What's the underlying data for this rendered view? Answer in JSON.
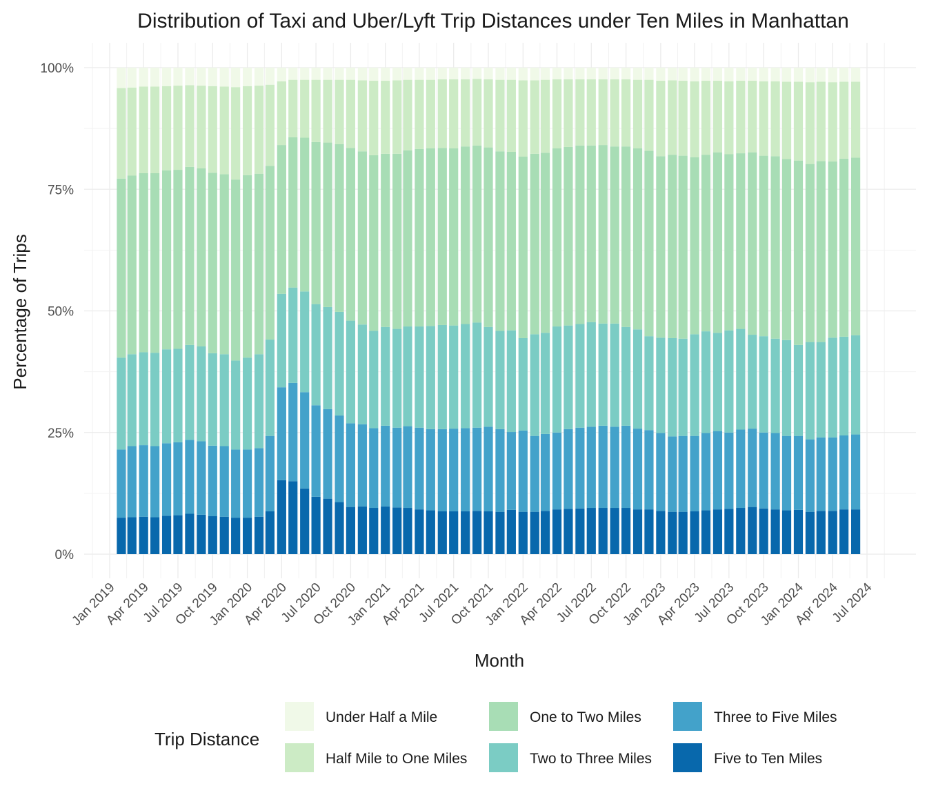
{
  "chart_data": {
    "type": "bar",
    "stacked": true,
    "title": "Distribution of Taxi and Uber/Lyft Trip Distances under Ten Miles in Manhattan",
    "xlabel": "Month",
    "ylabel": "Percentage of Trips",
    "ylim": [
      0,
      1
    ],
    "y_ticks": [
      0,
      0.25,
      0.5,
      0.75,
      1.0
    ],
    "y_tick_labels": [
      "0%",
      "25%",
      "50%",
      "75%",
      "100%"
    ],
    "x_tick_labels": [
      "Jan 2019",
      "Apr 2019",
      "Jul 2019",
      "Oct 2019",
      "Jan 2020",
      "Apr 2020",
      "Jul 2020",
      "Oct 2020",
      "Jan 2021",
      "Apr 2021",
      "Jul 2021",
      "Oct 2021",
      "Jan 2022",
      "Apr 2022",
      "Jul 2022",
      "Oct 2022",
      "Jan 2023",
      "Apr 2023",
      "Jul 2023",
      "Oct 2023",
      "Jan 2024",
      "Apr 2024",
      "Jul 2024"
    ],
    "grid": true,
    "legend": {
      "title": "Trip Distance",
      "placement": "bottom"
    },
    "months": [
      "2019-02",
      "2019-03",
      "2019-04",
      "2019-05",
      "2019-06",
      "2019-07",
      "2019-08",
      "2019-09",
      "2019-10",
      "2019-11",
      "2019-12",
      "2020-01",
      "2020-02",
      "2020-03",
      "2020-04",
      "2020-05",
      "2020-06",
      "2020-07",
      "2020-08",
      "2020-09",
      "2020-10",
      "2020-11",
      "2020-12",
      "2021-01",
      "2021-02",
      "2021-03",
      "2021-04",
      "2021-05",
      "2021-06",
      "2021-07",
      "2021-08",
      "2021-09",
      "2021-10",
      "2021-11",
      "2021-12",
      "2022-01",
      "2022-02",
      "2022-03",
      "2022-04",
      "2022-05",
      "2022-06",
      "2022-07",
      "2022-08",
      "2022-09",
      "2022-10",
      "2022-11",
      "2022-12",
      "2023-01",
      "2023-02",
      "2023-03",
      "2023-04",
      "2023-05",
      "2023-06",
      "2023-07",
      "2023-08",
      "2023-09",
      "2023-10",
      "2023-11",
      "2023-12",
      "2024-01",
      "2024-02",
      "2024-03",
      "2024-04",
      "2024-05",
      "2024-06"
    ],
    "series": [
      {
        "name": "Five to Ten Miles",
        "color": "#0868ac",
        "cumulative": [
          0.075,
          0.076,
          0.077,
          0.076,
          0.079,
          0.08,
          0.083,
          0.081,
          0.078,
          0.077,
          0.075,
          0.075,
          0.077,
          0.088,
          0.152,
          0.15,
          0.135,
          0.118,
          0.114,
          0.107,
          0.097,
          0.098,
          0.095,
          0.098,
          0.096,
          0.095,
          0.092,
          0.09,
          0.088,
          0.088,
          0.088,
          0.089,
          0.088,
          0.087,
          0.091,
          0.087,
          0.087,
          0.089,
          0.092,
          0.093,
          0.094,
          0.095,
          0.095,
          0.095,
          0.095,
          0.092,
          0.092,
          0.089,
          0.087,
          0.087,
          0.088,
          0.09,
          0.092,
          0.093,
          0.095,
          0.097,
          0.094,
          0.092,
          0.09,
          0.091,
          0.087,
          0.089,
          0.089,
          0.092,
          0.092
        ]
      },
      {
        "name": "Three to Five Miles",
        "color": "#43a2ca",
        "cumulative": [
          0.215,
          0.222,
          0.224,
          0.222,
          0.228,
          0.23,
          0.235,
          0.232,
          0.223,
          0.222,
          0.215,
          0.215,
          0.218,
          0.243,
          0.343,
          0.352,
          0.333,
          0.306,
          0.298,
          0.285,
          0.269,
          0.267,
          0.259,
          0.264,
          0.26,
          0.263,
          0.26,
          0.257,
          0.257,
          0.258,
          0.259,
          0.26,
          0.262,
          0.257,
          0.251,
          0.254,
          0.243,
          0.247,
          0.25,
          0.257,
          0.26,
          0.262,
          0.264,
          0.262,
          0.264,
          0.258,
          0.255,
          0.249,
          0.242,
          0.243,
          0.243,
          0.249,
          0.253,
          0.25,
          0.256,
          0.258,
          0.25,
          0.249,
          0.243,
          0.243,
          0.236,
          0.24,
          0.24,
          0.244,
          0.246
        ]
      },
      {
        "name": "Two to Three Miles",
        "color": "#7bccc4",
        "cumulative": [
          0.404,
          0.411,
          0.415,
          0.414,
          0.421,
          0.422,
          0.43,
          0.427,
          0.413,
          0.411,
          0.398,
          0.404,
          0.411,
          0.441,
          0.535,
          0.548,
          0.54,
          0.514,
          0.508,
          0.498,
          0.48,
          0.472,
          0.459,
          0.467,
          0.463,
          0.468,
          0.468,
          0.469,
          0.471,
          0.47,
          0.473,
          0.476,
          0.467,
          0.459,
          0.46,
          0.444,
          0.452,
          0.455,
          0.468,
          0.47,
          0.473,
          0.477,
          0.474,
          0.474,
          0.467,
          0.462,
          0.448,
          0.445,
          0.444,
          0.443,
          0.452,
          0.458,
          0.455,
          0.46,
          0.463,
          0.451,
          0.448,
          0.443,
          0.44,
          0.43,
          0.436,
          0.436,
          0.445,
          0.447,
          0.45
        ]
      },
      {
        "name": "One to Two Miles",
        "color": "#a8ddb5",
        "cumulative": [
          0.772,
          0.778,
          0.783,
          0.783,
          0.789,
          0.79,
          0.796,
          0.793,
          0.784,
          0.781,
          0.77,
          0.779,
          0.782,
          0.798,
          0.841,
          0.857,
          0.856,
          0.847,
          0.846,
          0.843,
          0.835,
          0.828,
          0.82,
          0.823,
          0.823,
          0.83,
          0.833,
          0.834,
          0.835,
          0.834,
          0.838,
          0.84,
          0.836,
          0.828,
          0.827,
          0.817,
          0.823,
          0.825,
          0.834,
          0.837,
          0.84,
          0.84,
          0.841,
          0.838,
          0.838,
          0.834,
          0.829,
          0.818,
          0.821,
          0.819,
          0.816,
          0.821,
          0.826,
          0.822,
          0.824,
          0.826,
          0.819,
          0.818,
          0.812,
          0.809,
          0.802,
          0.808,
          0.807,
          0.813,
          0.815
        ]
      },
      {
        "name": "Half Mile to One Miles",
        "color": "#ccebc5",
        "cumulative": [
          0.958,
          0.959,
          0.961,
          0.961,
          0.962,
          0.963,
          0.964,
          0.963,
          0.962,
          0.961,
          0.96,
          0.962,
          0.963,
          0.965,
          0.972,
          0.975,
          0.975,
          0.975,
          0.975,
          0.975,
          0.975,
          0.974,
          0.973,
          0.973,
          0.974,
          0.975,
          0.975,
          0.975,
          0.976,
          0.976,
          0.976,
          0.977,
          0.976,
          0.975,
          0.975,
          0.974,
          0.974,
          0.975,
          0.976,
          0.976,
          0.976,
          0.976,
          0.976,
          0.976,
          0.976,
          0.975,
          0.975,
          0.973,
          0.974,
          0.973,
          0.972,
          0.973,
          0.973,
          0.972,
          0.973,
          0.973,
          0.972,
          0.972,
          0.971,
          0.971,
          0.97,
          0.971,
          0.97,
          0.971,
          0.971
        ]
      },
      {
        "name": "Under Half a Mile",
        "color": "#f0f9e8",
        "cumulative": [
          1,
          1,
          1,
          1,
          1,
          1,
          1,
          1,
          1,
          1,
          1,
          1,
          1,
          1,
          1,
          1,
          1,
          1,
          1,
          1,
          1,
          1,
          1,
          1,
          1,
          1,
          1,
          1,
          1,
          1,
          1,
          1,
          1,
          1,
          1,
          1,
          1,
          1,
          1,
          1,
          1,
          1,
          1,
          1,
          1,
          1,
          1,
          1,
          1,
          1,
          1,
          1,
          1,
          1,
          1,
          1,
          1,
          1,
          1,
          1,
          1,
          1,
          1,
          1,
          1
        ]
      }
    ],
    "legend_order": [
      "Under Half a Mile",
      "Half Mile to One Miles",
      "One to Two Miles",
      "Two to Three Miles",
      "Three to Five Miles",
      "Five to Ten Miles"
    ]
  }
}
